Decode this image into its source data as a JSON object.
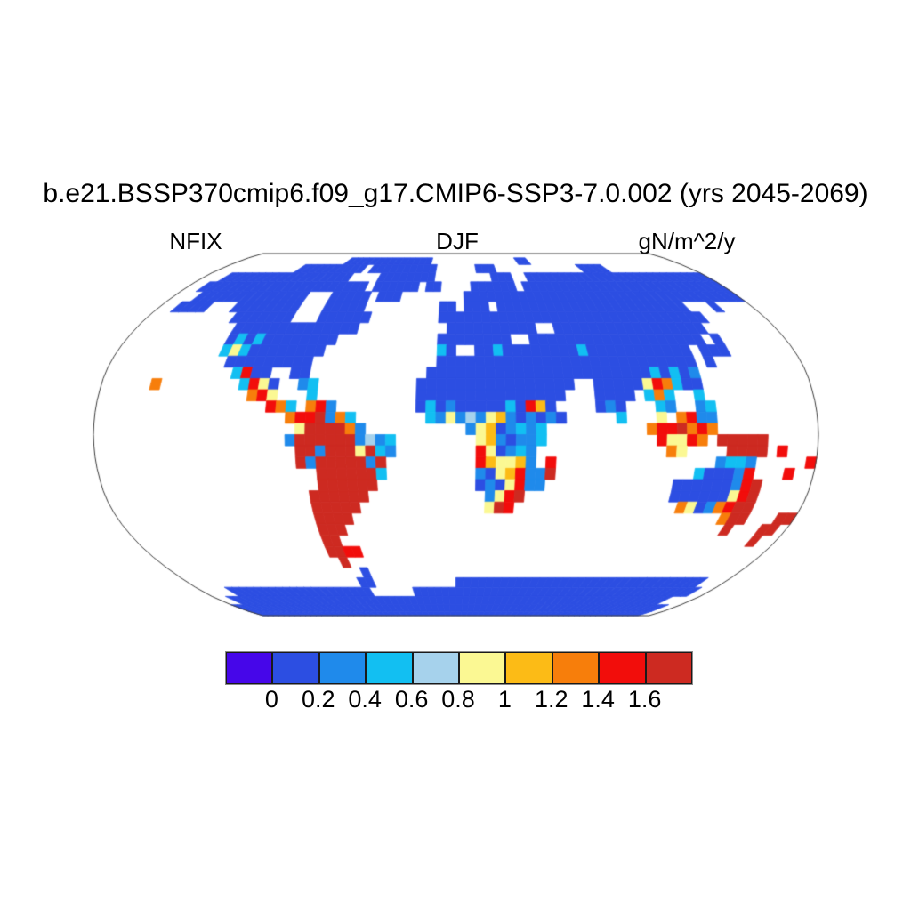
{
  "title": "b.e21.BSSP370cmip6.f09_g17.CMIP6-SSP3-7.0.002 (yrs 2045-2069)",
  "subtitles": {
    "left": "NFIX",
    "center": "DJF",
    "right": "gN/m^2/y"
  },
  "colorbar": {
    "ticks": [
      "0",
      "0.2",
      "0.4",
      "0.6",
      "0.8",
      "1",
      "1.2",
      "1.4",
      "1.6"
    ]
  },
  "chart_data": {
    "type": "heatmap",
    "projection": "Robinson",
    "variable": "NFIX",
    "season": "DJF",
    "units": "gN/m^2/y",
    "title": "b.e21.BSSP370cmip6.f09_g17.CMIP6-SSP3-7.0.002 (yrs 2045-2069)",
    "levels": [
      0,
      0.2,
      0.4,
      0.6,
      0.8,
      1,
      1.2,
      1.4,
      1.6
    ],
    "palette": [
      "#4606E9",
      "#2C4EE2",
      "#1F8AEB",
      "#12BFF2",
      "#A6D2EC",
      "#FBF893",
      "#FCBB16",
      "#F77E0B",
      "#F20D0B",
      "#CD2A21"
    ],
    "palette_classes": [
      "<0",
      "0-0.2",
      "0.2-0.4",
      "0.4-0.6",
      "0.6-0.8",
      "0.8-1",
      "1-1.2",
      "1.2-1.4",
      "1.4-1.6",
      ">1.6"
    ],
    "ocean_color": "#ffffff",
    "outline_color": "#3a3a3a",
    "grid": {
      "cols": 72,
      "rows": 36,
      "cell_degrees": 5,
      "ocean_code": ".",
      "code_to_class": {
        "P": 0,
        "B": 1,
        "b": 2,
        "c": 3,
        "l": 4,
        "y": 5,
        "g": 6,
        "o": 7,
        "r": 8,
        "R": 9
      },
      "rows_data": [
        "........................................................................",
        "..................BBBBBBBBBBBBBB..............BB........................",
        "............BBBBBBBBBB.BBBBBBBBBB......BBB.............BBBB.............",
        "...BBBBBBBBBBBBBBBBBB....BBBBBBBB........BBB..BBBBBBBBBBBBBBBBBBBBBBBBBB",
        "..BBBBBBBBBBBBBBBBBBBBBB.BBBBBB.BB....BBBBBB.BBBBBBBBBBBBBBBBBBBBBBBBBBB",
        "...BBBBBBBBBBBBBB...BBBBB.BBB........BBBBBBBBBBBBBBBBBBBBBBBBBBBBBBBBBBB",
        "..BBBB...BBBBBBBB...BBBBB.........BB.BBB.BBBBBBBBBBBBBBBBBBBBBBB...B....",
        "..........BBBBBBB...BBBBBB........BBBBBBBBBBBBBBBBBBBBBBBBBBBBBBB.......",
        "...........BBBBBBBBBBBBBB..........BBBBBBBBBB..BBBBBBBBBBBBBBBBB........",
        "...........BcBcBBBBBBBB...........BBBBBBBB..BBBBBBBBBBBBBBBBBBB.B.......",
        "...........cycBBBBBBBB............cB..BBcBBBBBBBBcBBBBBBBBBBB.BBB.......",
        "............BBBBBBBBB.............BBBBBBBBBBBBBBBBBBBBBBBBBBB.B.........",
        ".............crBB..BB............BBBBBBBBBBBBBBBBBBBBBBBcBcBb...........",
        ".....o........cryB..bc..........BBBBBBBBBBBBBBBB..BBBBByrocBB...........",
        "...............ory...c..........BBBBBBBBBBBBBBB...BBBB.coc..c...........",
        ".................roc.orb........BcBbBBBBBcBrgB....BbB...cb..bc..........",
        "...................orrRboc.......cbyblbygbBbBbB.....c...y.orbb..........",
        "....................yRRRRob..........bygBbcbc..........orrRoro..........",
        "...................bRRRRRRblbc........ygbBbbc...........ryyro.RRRRR.....",
        "....................RRbRRRyRcb........ryBbcb.............oy....RRRR.r...",
        "....................RbRRRRRbR.........rgyygb.r................bccb.....r",
        "......................RRRRRRc.........bBygrbbR..............cBBBbr...r..",
        "......................RRRRRR..........BbByrbb.............BBBBBBbrR.....",
        ".....................RRRRRR............byrR...............BBBBBByrR.....",
        ".....................RRRRR.............yRr.................oyBborRR.....",
        ".....................RRRR.......................................oRR...RR",
        ".....................RRR.........................................R...RR.",
        ".....................RR..............................................R..",
        ".....................RRrr...............................................",
        "......................R.................................................",
        "........................B...............................................",
        ".......................BB...........BBBBBBBBBBBBBBBBBBBBBBBBBBBBBBBBB...",
        "....BBBBBBBBBBBBBBBBBBBB......BBBBBBBBBBBBBBBBBBBBBBBBBBBBBBBBBBBBBBBB..",
        "..BBBBBBBBBBBBBBBBBBBBBBBBBBBBBBBBBBBBBBBBBBBBBBBBBBBBBBBBBBBBBBBBBB..",
        "BBBBBBBBBBBBBBBBBBBBBBBBBBBBBBBBBBBBBBBBBBBBBBBBBBBBBBBBBBBBBBBBBBBBBB",
        "BBBBBBBBBBBBBBBBBBBBBBBBBBBBBBBBBBBBBBBBBBBBBBBBBBBBBBBBBBBBBBBBBBBBBB"
      ]
    }
  }
}
